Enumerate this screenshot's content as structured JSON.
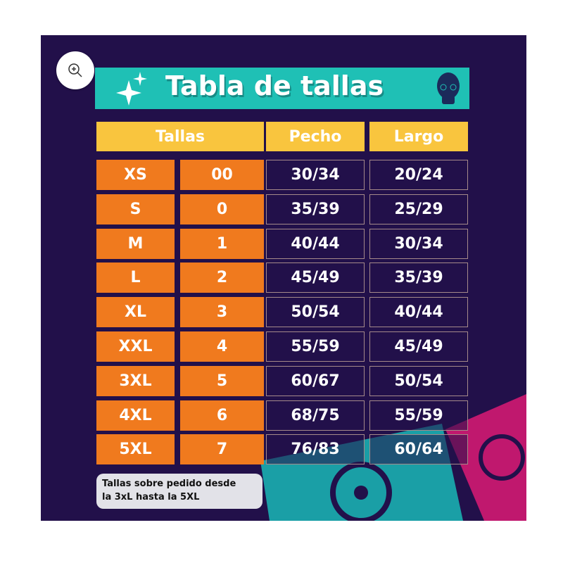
{
  "title": "Tabla de tallas",
  "zoom_button": {
    "icon": "zoom-in-icon"
  },
  "headers": {
    "tallas": "Tallas",
    "pecho": "Pecho",
    "largo": "Largo"
  },
  "rows": [
    {
      "size": "XS",
      "num": "00",
      "pecho": "30/34",
      "largo": "20/24"
    },
    {
      "size": "S",
      "num": "0",
      "pecho": "35/39",
      "largo": "25/29"
    },
    {
      "size": "M",
      "num": "1",
      "pecho": "40/44",
      "largo": "30/34"
    },
    {
      "size": "L",
      "num": "2",
      "pecho": "45/49",
      "largo": "35/39"
    },
    {
      "size": "XL",
      "num": "3",
      "pecho": "50/54",
      "largo": "40/44"
    },
    {
      "size": "XXL",
      "num": "4",
      "pecho": "55/59",
      "largo": "45/49"
    },
    {
      "size": "3XL",
      "num": "5",
      "pecho": "60/67",
      "largo": "50/54"
    },
    {
      "size": "4XL",
      "num": "6",
      "pecho": "68/75",
      "largo": "55/59"
    },
    {
      "size": "5XL",
      "num": "7",
      "pecho": "76/83",
      "largo": "60/64"
    }
  ],
  "note": {
    "line1": "Tallas sobre pedido desde",
    "line2": "la 3xL hasta la 5XL"
  },
  "colors": {
    "background": "#22104a",
    "title_bar": "#1fc0b5",
    "header": "#f9c53e",
    "size_cells": "#f07a1e",
    "papel_teal": "#1a9fa6",
    "papel_magenta": "#c0186e"
  }
}
